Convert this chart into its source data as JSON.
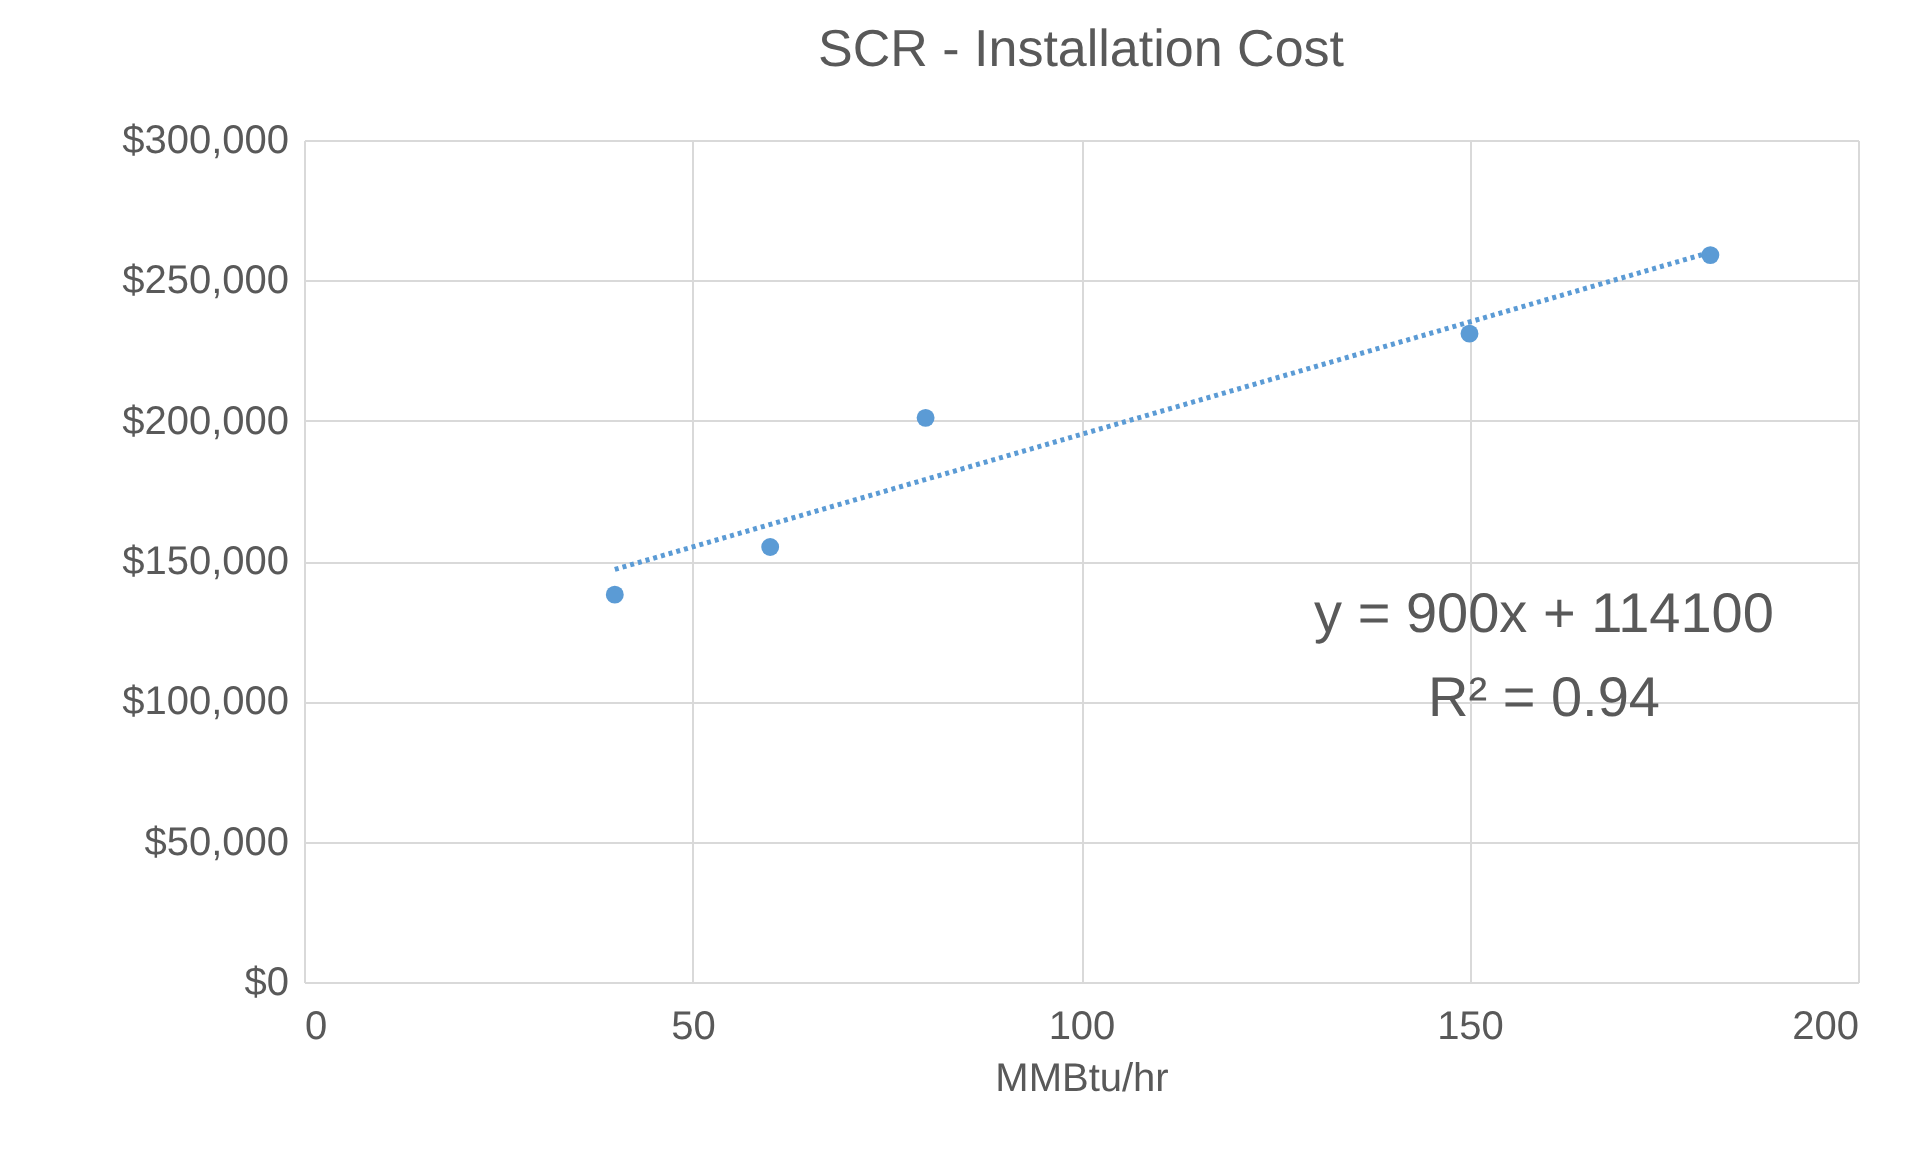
{
  "chart_data": {
    "type": "scatter",
    "title": "SCR - Installation Cost",
    "xlabel": "MMBtu/hr",
    "series": [
      {
        "color": "#5b9bd5",
        "marker": "circle",
        "x": [
          40,
          60,
          80,
          150,
          181
        ],
        "values": [
          138000,
          155000,
          201000,
          231000,
          259000
        ]
      },
      {
        "type": "line",
        "color": "#5b9bd5",
        "line_style": "dotted",
        "x": [
          40,
          181
        ],
        "values": [
          147000,
          260000
        ]
      }
    ],
    "xlim": [
      0,
      200
    ],
    "xticks": [
      0,
      50,
      100,
      150,
      200
    ],
    "ylim": [
      0,
      300000
    ],
    "yticks": [
      {
        "value": 0,
        "label": "$0"
      },
      {
        "value": 50000,
        "label": "$50,000"
      },
      {
        "value": 100000,
        "label": "$100,000"
      },
      {
        "value": 150000,
        "label": "$150,000"
      },
      {
        "value": 200000,
        "label": "$200,000"
      },
      {
        "value": 250000,
        "label": "$250,000"
      },
      {
        "value": 300000,
        "label": "$300,000"
      }
    ],
    "grid": true,
    "annotations": [
      "y = 900x + 114100",
      "R² = 0.94"
    ]
  }
}
